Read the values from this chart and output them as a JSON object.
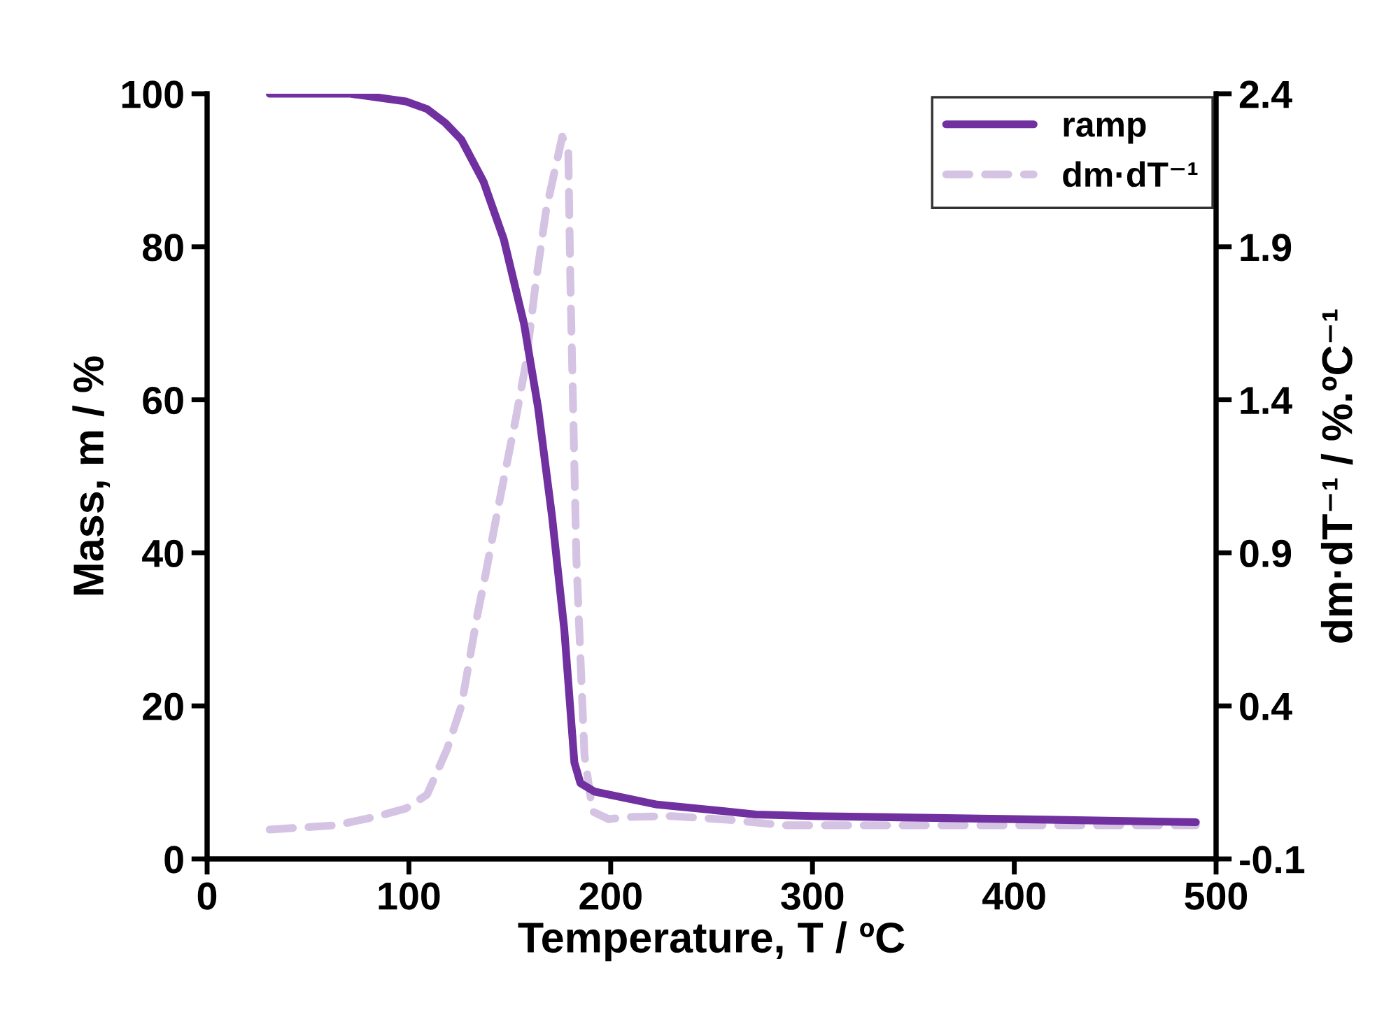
{
  "chart_data": {
    "type": "line",
    "xlabel": "Temperature, T / ºC",
    "ylabel": "Mass, m / %",
    "y2label": "dm·dT⁻¹ / %.ºC⁻¹",
    "xlim": [
      0,
      500
    ],
    "xticks": [
      0,
      100,
      200,
      300,
      400,
      500
    ],
    "ylim": [
      0,
      100
    ],
    "yticks": [
      0,
      20,
      40,
      60,
      80,
      100
    ],
    "y2lim": [
      -0.1,
      2.4
    ],
    "y2ticks": [
      -0.1,
      0.4,
      0.9,
      1.4,
      1.9,
      2.4
    ],
    "legend": "top right",
    "grid": false,
    "series": [
      {
        "name": "ramp",
        "color": "#7030a0",
        "line_style": "solid",
        "x": [
          31,
          71,
          98.5,
          109,
          118,
          126,
          137,
          147,
          157,
          164,
          171,
          177,
          182,
          185,
          192,
          223,
          258,
          272,
          300,
          400,
          490
        ],
        "values": [
          100,
          100,
          99,
          98,
          96.2,
          94,
          88.5,
          81,
          70,
          59,
          44.6,
          30,
          12.6,
          9.9,
          8.8,
          7.1,
          6.2,
          5.8,
          5.6,
          5.2,
          4.8
        ]
      },
      {
        "name": "dm·dT⁻¹",
        "color": "#d5c3e3",
        "line_style": "dashed",
        "axis": "y2",
        "x": [
          31,
          64,
          85,
          98.5,
          109,
          119,
          126,
          134,
          138,
          144,
          153,
          158,
          163,
          168,
          174,
          176,
          179,
          180,
          183,
          187,
          191,
          199,
          209,
          230,
          258,
          286,
          400,
          490
        ],
        "values": [
          -0.004,
          0.01,
          0.04,
          0.065,
          0.11,
          0.26,
          0.4,
          0.7,
          0.83,
          1.04,
          1.34,
          1.52,
          1.79,
          2.02,
          2.2,
          2.26,
          2.21,
          1.79,
          0.88,
          0.24,
          0.055,
          0.03,
          0.037,
          0.04,
          0.028,
          0.01,
          0.01,
          0.01
        ]
      }
    ]
  }
}
